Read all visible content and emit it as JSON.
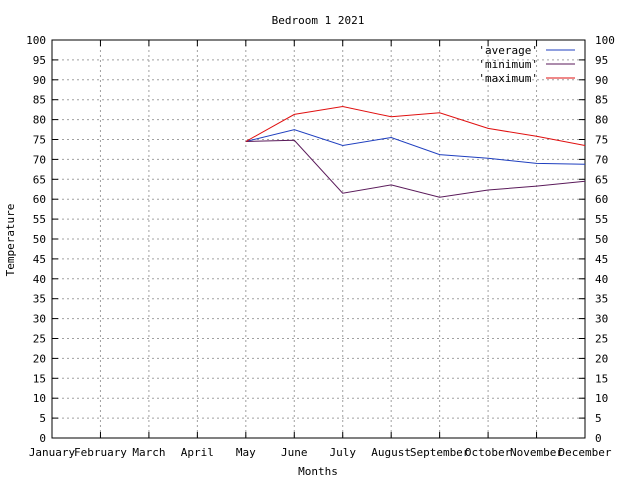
{
  "chart_data": {
    "type": "line",
    "title": "Bedroom 1 2021",
    "xlabel": "Months",
    "ylabel": "Temperature",
    "categories": [
      "January",
      "February",
      "March",
      "April",
      "May",
      "June",
      "July",
      "August",
      "September",
      "October",
      "November",
      "December"
    ],
    "ylim": [
      0,
      100
    ],
    "ytick_step": 5,
    "grid": true,
    "legend_position": "top-right",
    "series": [
      {
        "name": "'average'",
        "color": "#1f3fbf",
        "values": [
          null,
          null,
          null,
          null,
          74.5,
          77.5,
          73.5,
          75.5,
          71.2,
          70.3,
          69.0,
          68.8
        ]
      },
      {
        "name": "'minimum'",
        "color": "#5a1a5a",
        "values": [
          null,
          null,
          null,
          null,
          74.5,
          74.8,
          61.5,
          63.6,
          60.5,
          62.3,
          63.3,
          64.5
        ]
      },
      {
        "name": "'maximum'",
        "color": "#e01010",
        "values": [
          null,
          null,
          null,
          null,
          74.5,
          81.3,
          83.3,
          80.7,
          81.7,
          77.8,
          75.8,
          73.5
        ]
      }
    ]
  }
}
